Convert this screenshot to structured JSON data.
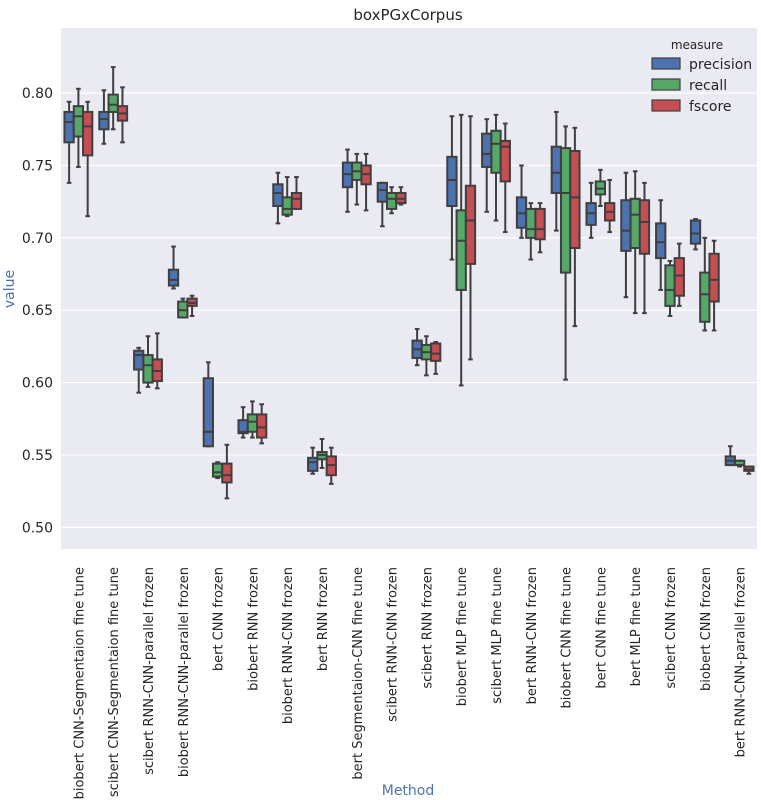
{
  "chart_data": {
    "type": "boxplot",
    "title": "boxPGxCorpus",
    "xlabel": "Method",
    "ylabel": "value",
    "ylim": [
      0.485,
      0.845
    ],
    "yticks": [
      "0.50",
      "0.55",
      "0.60",
      "0.65",
      "0.70",
      "0.75",
      "0.80"
    ],
    "ytick_values": [
      0.5,
      0.55,
      0.6,
      0.65,
      0.7,
      0.75,
      0.8
    ],
    "grid": true,
    "legend": {
      "title": "measure",
      "placement": "top-right",
      "entries": [
        {
          "label": "precision",
          "color": "#4c72b0"
        },
        {
          "label": "recall",
          "color": "#55a868"
        },
        {
          "label": "fscore",
          "color": "#c44e52"
        }
      ]
    },
    "categories": [
      "biobert CNN-Segmentaion fine tune",
      "scibert CNN-Segmentaion fine tune",
      "scibert RNN-CNN-parallel frozen",
      "biobert RNN-CNN-parallel frozen",
      "bert CNN frozen",
      "biobert RNN frozen",
      "biobert  RNN-CNN frozen",
      "bert RNN frozen",
      "bert Segmentaion-CNN fine tune",
      "scibert RNN-CNN frozen",
      "scibert RNN frozen",
      "biobert  MLP fine tune",
      "scibert  MLP fine tune",
      "bert RNN-CNN frozen",
      "biobert CNN fine tune",
      "bert CNN fine tune",
      "bert MLP fine tune",
      "scibert CNN frozen",
      "biobert CNN frozen",
      "bert RNN-CNN-parallel frozen"
    ],
    "series": [
      {
        "name": "precision",
        "color": "#4c72b0",
        "boxes": [
          {
            "whislo": 0.738,
            "q1": 0.766,
            "med": 0.78,
            "q3": 0.787,
            "whishi": 0.794
          },
          {
            "whislo": 0.765,
            "q1": 0.775,
            "med": 0.782,
            "q3": 0.787,
            "whishi": 0.802
          },
          {
            "whislo": 0.593,
            "q1": 0.609,
            "med": 0.619,
            "q3": 0.622,
            "whishi": 0.624
          },
          {
            "whislo": 0.665,
            "q1": 0.667,
            "med": 0.671,
            "q3": 0.678,
            "whishi": 0.694
          },
          {
            "whislo": 0.556,
            "q1": 0.556,
            "med": 0.566,
            "q3": 0.603,
            "whishi": 0.614
          },
          {
            "whislo": 0.562,
            "q1": 0.565,
            "med": 0.566,
            "q3": 0.574,
            "whishi": 0.583
          },
          {
            "whislo": 0.71,
            "q1": 0.722,
            "med": 0.731,
            "q3": 0.737,
            "whishi": 0.745
          },
          {
            "whislo": 0.537,
            "q1": 0.539,
            "med": 0.545,
            "q3": 0.548,
            "whishi": 0.555
          },
          {
            "whislo": 0.718,
            "q1": 0.735,
            "med": 0.744,
            "q3": 0.752,
            "whishi": 0.761
          },
          {
            "whislo": 0.708,
            "q1": 0.725,
            "med": 0.733,
            "q3": 0.738,
            "whishi": 0.738
          },
          {
            "whislo": 0.612,
            "q1": 0.617,
            "med": 0.623,
            "q3": 0.629,
            "whishi": 0.637
          },
          {
            "whislo": 0.685,
            "q1": 0.722,
            "med": 0.74,
            "q3": 0.756,
            "whishi": 0.784
          },
          {
            "whislo": 0.718,
            "q1": 0.749,
            "med": 0.758,
            "q3": 0.772,
            "whishi": 0.782
          },
          {
            "whislo": 0.7,
            "q1": 0.707,
            "med": 0.717,
            "q3": 0.728,
            "whishi": 0.75
          },
          {
            "whislo": 0.705,
            "q1": 0.731,
            "med": 0.745,
            "q3": 0.763,
            "whishi": 0.787
          },
          {
            "whislo": 0.7,
            "q1": 0.709,
            "med": 0.717,
            "q3": 0.724,
            "whishi": 0.738
          },
          {
            "whislo": 0.659,
            "q1": 0.691,
            "med": 0.705,
            "q3": 0.726,
            "whishi": 0.745
          },
          {
            "whislo": 0.664,
            "q1": 0.686,
            "med": 0.697,
            "q3": 0.71,
            "whishi": 0.726
          },
          {
            "whislo": 0.692,
            "q1": 0.696,
            "med": 0.703,
            "q3": 0.712,
            "whishi": 0.713
          },
          {
            "whislo": 0.543,
            "q1": 0.543,
            "med": 0.546,
            "q3": 0.549,
            "whishi": 0.556
          }
        ]
      },
      {
        "name": "recall",
        "color": "#55a868",
        "boxes": [
          {
            "whislo": 0.749,
            "q1": 0.77,
            "med": 0.784,
            "q3": 0.791,
            "whishi": 0.803
          },
          {
            "whislo": 0.775,
            "q1": 0.787,
            "med": 0.792,
            "q3": 0.799,
            "whishi": 0.818
          },
          {
            "whislo": 0.597,
            "q1": 0.6,
            "med": 0.612,
            "q3": 0.619,
            "whishi": 0.632
          },
          {
            "whislo": 0.645,
            "q1": 0.645,
            "med": 0.65,
            "q3": 0.656,
            "whishi": 0.658
          },
          {
            "whislo": 0.534,
            "q1": 0.535,
            "med": 0.538,
            "q3": 0.544,
            "whishi": 0.545
          },
          {
            "whislo": 0.562,
            "q1": 0.566,
            "med": 0.573,
            "q3": 0.578,
            "whishi": 0.587
          },
          {
            "whislo": 0.715,
            "q1": 0.716,
            "med": 0.72,
            "q3": 0.728,
            "whishi": 0.742
          },
          {
            "whislo": 0.541,
            "q1": 0.547,
            "med": 0.55,
            "q3": 0.552,
            "whishi": 0.561
          },
          {
            "whislo": 0.723,
            "q1": 0.74,
            "med": 0.746,
            "q3": 0.752,
            "whishi": 0.758
          },
          {
            "whislo": 0.717,
            "q1": 0.72,
            "med": 0.727,
            "q3": 0.731,
            "whishi": 0.735
          },
          {
            "whislo": 0.605,
            "q1": 0.616,
            "med": 0.621,
            "q3": 0.626,
            "whishi": 0.632
          },
          {
            "whislo": 0.598,
            "q1": 0.664,
            "med": 0.698,
            "q3": 0.719,
            "whishi": 0.785
          },
          {
            "whislo": 0.712,
            "q1": 0.745,
            "med": 0.765,
            "q3": 0.774,
            "whishi": 0.785
          },
          {
            "whislo": 0.685,
            "q1": 0.7,
            "med": 0.706,
            "q3": 0.72,
            "whishi": 0.724
          },
          {
            "whislo": 0.602,
            "q1": 0.676,
            "med": 0.731,
            "q3": 0.762,
            "whishi": 0.777
          },
          {
            "whislo": 0.722,
            "q1": 0.73,
            "med": 0.734,
            "q3": 0.739,
            "whishi": 0.747
          },
          {
            "whislo": 0.648,
            "q1": 0.693,
            "med": 0.716,
            "q3": 0.727,
            "whishi": 0.746
          },
          {
            "whislo": 0.646,
            "q1": 0.653,
            "med": 0.664,
            "q3": 0.681,
            "whishi": 0.684
          },
          {
            "whislo": 0.636,
            "q1": 0.642,
            "med": 0.661,
            "q3": 0.676,
            "whishi": 0.7
          },
          {
            "whislo": 0.542,
            "q1": 0.543,
            "med": 0.543,
            "q3": 0.546,
            "whishi": 0.546
          }
        ]
      },
      {
        "name": "fscore",
        "color": "#c44e52",
        "boxes": [
          {
            "whislo": 0.715,
            "q1": 0.757,
            "med": 0.777,
            "q3": 0.787,
            "whishi": 0.794
          },
          {
            "whislo": 0.766,
            "q1": 0.781,
            "med": 0.786,
            "q3": 0.791,
            "whishi": 0.804
          },
          {
            "whislo": 0.596,
            "q1": 0.601,
            "med": 0.608,
            "q3": 0.616,
            "whishi": 0.634
          },
          {
            "whislo": 0.646,
            "q1": 0.653,
            "med": 0.655,
            "q3": 0.658,
            "whishi": 0.66
          },
          {
            "whislo": 0.52,
            "q1": 0.531,
            "med": 0.536,
            "q3": 0.544,
            "whishi": 0.557
          },
          {
            "whislo": 0.558,
            "q1": 0.562,
            "med": 0.569,
            "q3": 0.578,
            "whishi": 0.585
          },
          {
            "whislo": 0.72,
            "q1": 0.72,
            "med": 0.727,
            "q3": 0.731,
            "whishi": 0.742
          },
          {
            "whislo": 0.53,
            "q1": 0.536,
            "med": 0.543,
            "q3": 0.549,
            "whishi": 0.555
          },
          {
            "whislo": 0.719,
            "q1": 0.737,
            "med": 0.744,
            "q3": 0.75,
            "whishi": 0.758
          },
          {
            "whislo": 0.723,
            "q1": 0.724,
            "med": 0.727,
            "q3": 0.731,
            "whishi": 0.735
          },
          {
            "whislo": 0.606,
            "q1": 0.615,
            "med": 0.62,
            "q3": 0.627,
            "whishi": 0.628
          },
          {
            "whislo": 0.616,
            "q1": 0.682,
            "med": 0.712,
            "q3": 0.736,
            "whishi": 0.784
          },
          {
            "whislo": 0.704,
            "q1": 0.739,
            "med": 0.763,
            "q3": 0.767,
            "whishi": 0.779
          },
          {
            "whislo": 0.69,
            "q1": 0.699,
            "med": 0.706,
            "q3": 0.72,
            "whishi": 0.724
          },
          {
            "whislo": 0.639,
            "q1": 0.693,
            "med": 0.728,
            "q3": 0.76,
            "whishi": 0.776
          },
          {
            "whislo": 0.704,
            "q1": 0.712,
            "med": 0.718,
            "q3": 0.724,
            "whishi": 0.74
          },
          {
            "whislo": 0.648,
            "q1": 0.689,
            "med": 0.711,
            "q3": 0.726,
            "whishi": 0.738
          },
          {
            "whislo": 0.653,
            "q1": 0.66,
            "med": 0.674,
            "q3": 0.686,
            "whishi": 0.696
          },
          {
            "whislo": 0.636,
            "q1": 0.656,
            "med": 0.671,
            "q3": 0.689,
            "whishi": 0.698
          },
          {
            "whislo": 0.537,
            "q1": 0.539,
            "med": 0.54,
            "q3": 0.542,
            "whishi": 0.542
          }
        ]
      }
    ]
  }
}
